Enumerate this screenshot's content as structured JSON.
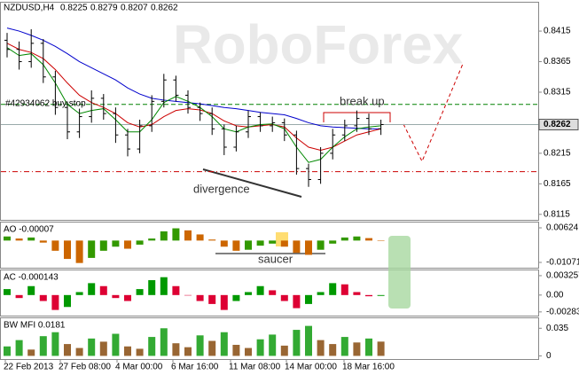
{
  "header": {
    "symbol": "NZDUSD,H4",
    "ohlc": [
      0.8225,
      0.8279,
      0.8207,
      0.8262
    ]
  },
  "watermark": "RoboForex",
  "chart_data": [
    {
      "type": "ohlc",
      "open": [
        0.84,
        0.8385,
        0.8365,
        0.8395,
        0.834,
        0.829,
        0.825,
        0.8275,
        0.8305,
        0.828,
        0.8245,
        0.8222,
        0.826,
        0.83,
        0.8335,
        0.831,
        0.829,
        0.828,
        0.8255,
        0.8225,
        0.825,
        0.8275,
        0.826,
        0.8265,
        0.8245,
        0.819,
        0.8172,
        0.8215,
        0.8245,
        0.826,
        0.8272,
        0.8255
      ],
      "high": [
        0.8412,
        0.8398,
        0.8418,
        0.8402,
        0.835,
        0.83,
        0.8288,
        0.8318,
        0.8312,
        0.829,
        0.8255,
        0.827,
        0.831,
        0.8345,
        0.8342,
        0.8318,
        0.8298,
        0.829,
        0.8262,
        0.826,
        0.8285,
        0.8282,
        0.8275,
        0.8272,
        0.8252,
        0.8198,
        0.8225,
        0.8255,
        0.827,
        0.8285,
        0.828,
        0.827
      ],
      "low": [
        0.8372,
        0.8352,
        0.8355,
        0.833,
        0.8278,
        0.8238,
        0.824,
        0.8265,
        0.827,
        0.8232,
        0.821,
        0.8215,
        0.825,
        0.829,
        0.83,
        0.828,
        0.8268,
        0.8245,
        0.8212,
        0.8218,
        0.824,
        0.825,
        0.825,
        0.8235,
        0.818,
        0.816,
        0.8165,
        0.8205,
        0.8235,
        0.825,
        0.8245,
        0.8245
      ],
      "close": [
        0.8385,
        0.8365,
        0.8395,
        0.834,
        0.829,
        0.825,
        0.8275,
        0.8305,
        0.828,
        0.8245,
        0.8222,
        0.826,
        0.83,
        0.8335,
        0.831,
        0.829,
        0.828,
        0.8255,
        0.8225,
        0.825,
        0.8275,
        0.826,
        0.8265,
        0.8245,
        0.819,
        0.8172,
        0.8215,
        0.8245,
        0.826,
        0.8272,
        0.8255,
        0.8262
      ],
      "bar_color": "#000000",
      "moving_averages": [
        {
          "color": "#0000cc",
          "values": [
            0.842,
            0.8415,
            0.8408,
            0.84,
            0.839,
            0.8378,
            0.8365,
            0.8355,
            0.8345,
            0.8335,
            0.8322,
            0.8312,
            0.8305,
            0.8302,
            0.83,
            0.8298,
            0.8296,
            0.8293,
            0.829,
            0.8288,
            0.8285,
            0.8282,
            0.828,
            0.8278,
            0.8272,
            0.8265,
            0.826,
            0.8258,
            0.8257,
            0.8256,
            0.8255,
            0.8255
          ]
        },
        {
          "color": "#cc0000",
          "values": [
            0.8395,
            0.8385,
            0.838,
            0.837,
            0.8352,
            0.833,
            0.831,
            0.8298,
            0.829,
            0.828,
            0.8265,
            0.8258,
            0.8262,
            0.8275,
            0.8285,
            0.8288,
            0.8286,
            0.828,
            0.8268,
            0.826,
            0.8258,
            0.826,
            0.8262,
            0.8258,
            0.824,
            0.8225,
            0.822,
            0.8225,
            0.8235,
            0.8245,
            0.825,
            0.8255
          ]
        },
        {
          "color": "#008800",
          "values": [
            0.8388,
            0.8375,
            0.8378,
            0.836,
            0.833,
            0.8295,
            0.828,
            0.8285,
            0.8288,
            0.827,
            0.825,
            0.825,
            0.827,
            0.8298,
            0.8308,
            0.83,
            0.829,
            0.8275,
            0.8255,
            0.825,
            0.8258,
            0.8262,
            0.8263,
            0.8255,
            0.8225,
            0.82,
            0.8205,
            0.8225,
            0.8242,
            0.8255,
            0.8258,
            0.826
          ]
        }
      ],
      "ylim": [
        0.8106,
        0.8463
      ],
      "yticks": [
        0.8415,
        0.8365,
        0.8315,
        0.8215,
        0.8165,
        0.8115
      ],
      "current_price": 0.8262,
      "levels": [
        {
          "value": 0.8295,
          "color": "#008000"
        },
        {
          "value": 0.8185,
          "color": "#cc0000"
        }
      ],
      "annotations": {
        "order": "#42934062 buy stop",
        "breakout": "break up",
        "divergence": "divergence"
      },
      "x_labels": [
        "22 Feb 2013",
        "27 Feb 08:00",
        "4 Mar 00:00",
        "6 Mar 16:00",
        "11 Mar 08:00",
        "14 Mar 00:00",
        "18 Mar 16:00"
      ]
    },
    {
      "type": "histogram",
      "title": "AO -0.00007",
      "values": [
        0.002,
        0.001,
        0.0015,
        -0.001,
        -0.005,
        -0.009,
        -0.011,
        -0.0085,
        -0.005,
        -0.003,
        -0.004,
        -0.002,
        0.001,
        0.0045,
        0.006,
        0.005,
        0.003,
        0.0005,
        -0.003,
        -0.005,
        -0.0045,
        -0.0025,
        -0.0015,
        -0.003,
        -0.006,
        -0.007,
        -0.0045,
        -0.0015,
        0.0015,
        0.002,
        0.0012,
        -7e-05
      ],
      "up_color": "#339900",
      "down_color": "#cc6600",
      "ylim": [
        -0.01332,
        0.00928
      ],
      "yticks": [
        0.00624,
        -0.01071
      ],
      "annotation": "saucer"
    },
    {
      "type": "histogram",
      "title": "AC -0.000143",
      "values": [
        0.001,
        -0.0005,
        0.0015,
        -0.001,
        -0.0025,
        -0.002,
        0.0005,
        0.002,
        0.0015,
        -0.0005,
        -0.001,
        0.001,
        0.0025,
        0.003,
        0.0015,
        0.0,
        -0.001,
        -0.0015,
        -0.0025,
        -0.001,
        0.0005,
        0.0015,
        0.0008,
        -0.001,
        -0.0022,
        -0.0015,
        0.0005,
        0.002,
        0.0018,
        0.0005,
        -0.0002,
        -0.000143
      ],
      "up_color": "#009900",
      "down_color": "#dd0033",
      "ylim": [
        -0.00345,
        0.00429
      ],
      "yticks": [
        0.003257,
        {
          "value": 0,
          "label": "0.00"
        },
        -0.00283
      ]
    },
    {
      "type": "histogram",
      "title": "BW MFI 0.0181",
      "values": [
        0.012,
        0.02,
        0.008,
        0.025,
        0.03,
        0.015,
        0.01,
        0.022,
        0.018,
        0.028,
        0.012,
        0.009,
        0.024,
        0.035,
        0.016,
        0.011,
        0.026,
        0.019,
        0.03,
        0.014,
        0.01,
        0.021,
        0.027,
        0.013,
        0.033,
        0.038,
        0.02,
        0.015,
        0.024,
        0.017,
        0.022,
        0.0181
      ],
      "up_color": "#33aa33",
      "down_color": "#996633",
      "ylim": [
        -0.004,
        0.0488
      ],
      "yticks": [
        0.035,
        0
      ]
    }
  ]
}
